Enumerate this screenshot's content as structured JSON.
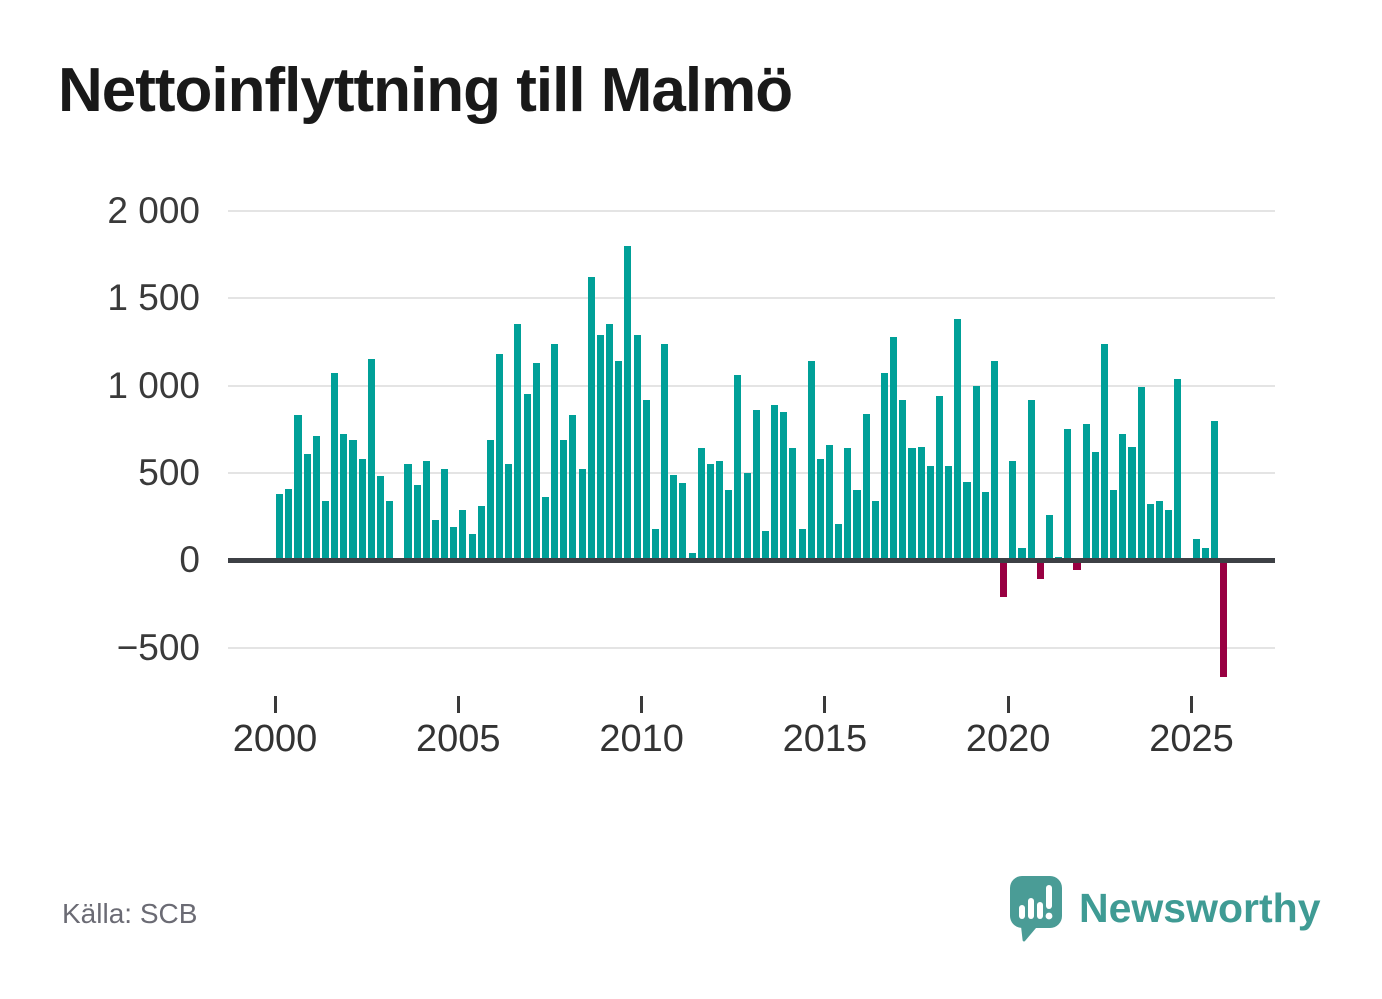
{
  "chart_data": {
    "type": "bar",
    "title": "Nettoinflyttning till Malmö",
    "frequency": "quarterly",
    "legend": "none",
    "grid": "horizontal",
    "positive_color": "#00a098",
    "negative_color": "#990042",
    "ylim": [
      -700,
      2000
    ],
    "x_ticks": [
      {
        "year": 2000,
        "label": "2000"
      },
      {
        "year": 2005,
        "label": "2005"
      },
      {
        "year": 2010,
        "label": "2010"
      },
      {
        "year": 2015,
        "label": "2015"
      },
      {
        "year": 2020,
        "label": "2020"
      },
      {
        "year": 2025,
        "label": "2025"
      }
    ],
    "y_ticks": [
      {
        "value": 2000,
        "label": "2 000"
      },
      {
        "value": 1500,
        "label": "1 500"
      },
      {
        "value": 1000,
        "label": "1 000"
      },
      {
        "value": 500,
        "label": "500"
      },
      {
        "value": 0,
        "label": "0"
      },
      {
        "value": -500,
        "label": "−500"
      }
    ],
    "quarters": [
      "2000 Q1",
      "2000 Q2",
      "2000 Q3",
      "2000 Q4",
      "2001 Q1",
      "2001 Q2",
      "2001 Q3",
      "2001 Q4",
      "2002 Q1",
      "2002 Q2",
      "2002 Q3",
      "2002 Q4",
      "2003 Q1",
      "2003 Q2",
      "2003 Q3",
      "2003 Q4",
      "2004 Q1",
      "2004 Q2",
      "2004 Q3",
      "2004 Q4",
      "2005 Q1",
      "2005 Q2",
      "2005 Q3",
      "2005 Q4",
      "2006 Q1",
      "2006 Q2",
      "2006 Q3",
      "2006 Q4",
      "2007 Q1",
      "2007 Q2",
      "2007 Q3",
      "2007 Q4",
      "2008 Q1",
      "2008 Q2",
      "2008 Q3",
      "2008 Q4",
      "2009 Q1",
      "2009 Q2",
      "2009 Q3",
      "2009 Q4",
      "2010 Q1",
      "2010 Q2",
      "2010 Q3",
      "2010 Q4",
      "2011 Q1",
      "2011 Q2",
      "2011 Q3",
      "2011 Q4",
      "2012 Q1",
      "2012 Q2",
      "2012 Q3",
      "2012 Q4",
      "2013 Q1",
      "2013 Q2",
      "2013 Q3",
      "2013 Q4",
      "2014 Q1",
      "2014 Q2",
      "2014 Q3",
      "2014 Q4",
      "2015 Q1",
      "2015 Q2",
      "2015 Q3",
      "2015 Q4",
      "2016 Q1",
      "2016 Q2",
      "2016 Q3",
      "2016 Q4",
      "2017 Q1",
      "2017 Q2",
      "2017 Q3",
      "2017 Q4",
      "2018 Q1",
      "2018 Q2",
      "2018 Q3",
      "2018 Q4",
      "2019 Q1",
      "2019 Q2",
      "2019 Q3",
      "2019 Q4",
      "2020 Q1",
      "2020 Q2",
      "2020 Q3",
      "2020 Q4",
      "2021 Q1",
      "2021 Q2",
      "2021 Q3",
      "2021 Q4",
      "2022 Q1",
      "2022 Q2",
      "2022 Q3",
      "2022 Q4",
      "2023 Q1",
      "2023 Q2",
      "2023 Q3",
      "2023 Q4",
      "2024 Q1",
      "2024 Q2",
      "2024 Q3",
      "2024 Q4",
      "2025 Q1",
      "2025 Q2",
      "2025 Q3",
      "2025 Q4"
    ],
    "values": [
      380,
      410,
      830,
      610,
      710,
      340,
      1070,
      720,
      690,
      580,
      1150,
      480,
      340,
      0,
      550,
      430,
      570,
      230,
      520,
      190,
      290,
      150,
      310,
      690,
      1180,
      550,
      1350,
      950,
      1130,
      360,
      1240,
      690,
      830,
      520,
      1620,
      1290,
      1350,
      1140,
      1800,
      1290,
      920,
      180,
      1240,
      490,
      440,
      40,
      640,
      550,
      570,
      400,
      1060,
      500,
      860,
      170,
      890,
      850,
      640,
      180,
      1140,
      580,
      660,
      210,
      640,
      400,
      840,
      340,
      1070,
      1280,
      920,
      640,
      650,
      540,
      940,
      540,
      1380,
      450,
      1000,
      390,
      1140,
      -210,
      570,
      70,
      920,
      -110,
      260,
      20,
      750,
      -55,
      780,
      620,
      1240,
      400,
      720,
      650,
      990,
      320,
      340,
      290,
      1040,
      0,
      120,
      70,
      800,
      -670
    ]
  },
  "footer": {
    "source": "Källa: SCB",
    "brand": "Newsworthy",
    "logo_icon": "newsworthy-speech-bubble-bar-chart-icon",
    "brand_color": "#3f9b94"
  }
}
